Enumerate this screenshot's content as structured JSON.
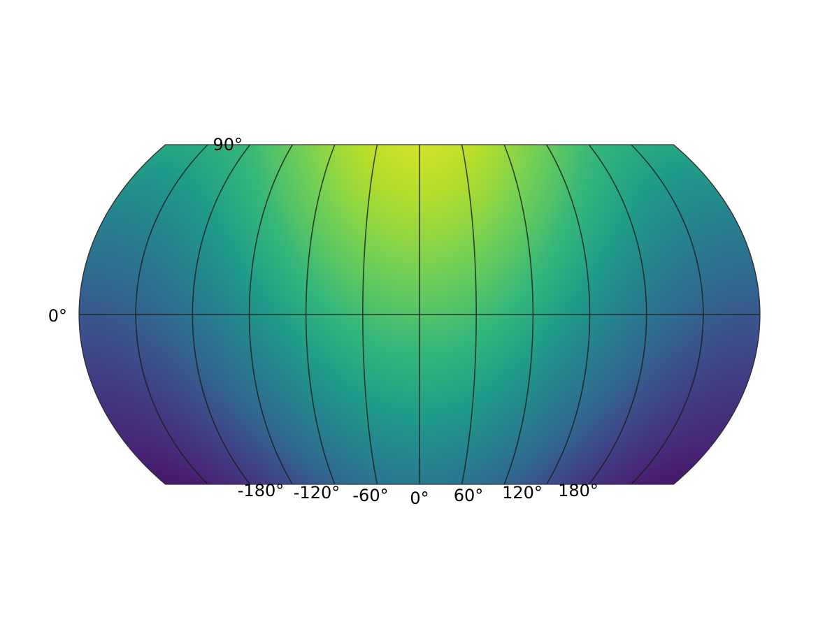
{
  "map": {
    "projection": "pseudo-cylindrical, top and bottom clipped",
    "colormap": "viridis",
    "color_stops": [
      "#440154",
      "#482878",
      "#3e4989",
      "#31688e",
      "#26828e",
      "#1f9e89",
      "#35b779",
      "#6ece58",
      "#b5de2b",
      "#fde725"
    ],
    "gridline_color": "#1a1a1a",
    "meridian_labels": [
      "-180°",
      "-120°",
      "-60°",
      "0°",
      "60°",
      "120°",
      "180°"
    ],
    "parallel_labels": {
      "top": "90°",
      "equator": "0°"
    },
    "field_description_values": {
      "max_at": {
        "lon": 0,
        "lat": 90
      },
      "min_at": [
        {
          "lon": -180,
          "lat": -90
        },
        {
          "lon": 180,
          "lat": -90
        }
      ]
    }
  }
}
